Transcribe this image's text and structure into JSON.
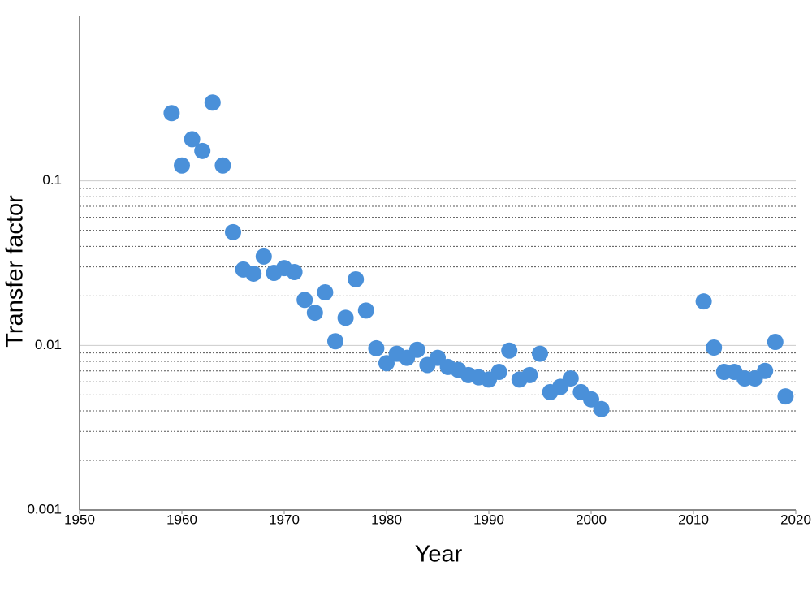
{
  "chart_data": {
    "type": "scatter",
    "x_label": "Year",
    "y_label": "Transfer factor",
    "x": [
      1959,
      1960,
      1961,
      1962,
      1963,
      1964,
      1965,
      1966,
      1967,
      1968,
      1969,
      1970,
      1971,
      1972,
      1973,
      1974,
      1975,
      1976,
      1977,
      1978,
      1979,
      1980,
      1981,
      1982,
      1983,
      1984,
      1985,
      1986,
      1987,
      1988,
      1989,
      1990,
      1991,
      1992,
      1993,
      1994,
      1995,
      1996,
      1997,
      1998,
      1999,
      2000,
      2001,
      2011,
      2012,
      2013,
      2014,
      2015,
      2016,
      2017,
      2018,
      2019
    ],
    "values": [
      0.258,
      0.124,
      0.179,
      0.152,
      0.299,
      0.124,
      0.0488,
      0.0289,
      0.0273,
      0.0347,
      0.0276,
      0.0295,
      0.0279,
      0.0189,
      0.0158,
      0.021,
      0.0106,
      0.0147,
      0.0252,
      0.0163,
      0.0096,
      0.0078,
      0.0089,
      0.0084,
      0.0094,
      0.0076,
      0.0084,
      0.0074,
      0.0071,
      0.0066,
      0.0064,
      0.0062,
      0.0069,
      0.0093,
      0.0062,
      0.0066,
      0.0089,
      0.0052,
      0.0056,
      0.0063,
      0.0052,
      0.0047,
      0.0041,
      0.0185,
      0.0097,
      0.0069,
      0.0069,
      0.0063,
      0.0063,
      0.007,
      0.0105,
      0.0049
    ],
    "color": "#4a90d9",
    "xlim": [
      1950,
      2020
    ],
    "xticks": [
      1950,
      1960,
      1970,
      1980,
      1990,
      2000,
      2010,
      2020
    ],
    "ylim": [
      0.001,
      1
    ],
    "yticks": [
      0.001,
      0.01,
      0.1
    ],
    "yminorticks": [
      0.002,
      0.003,
      0.004,
      0.005,
      0.006,
      0.007,
      0.008,
      0.009,
      0.02,
      0.03,
      0.04,
      0.05,
      0.06,
      0.07,
      0.08,
      0.09
    ],
    "ylog": true,
    "grid": true
  }
}
